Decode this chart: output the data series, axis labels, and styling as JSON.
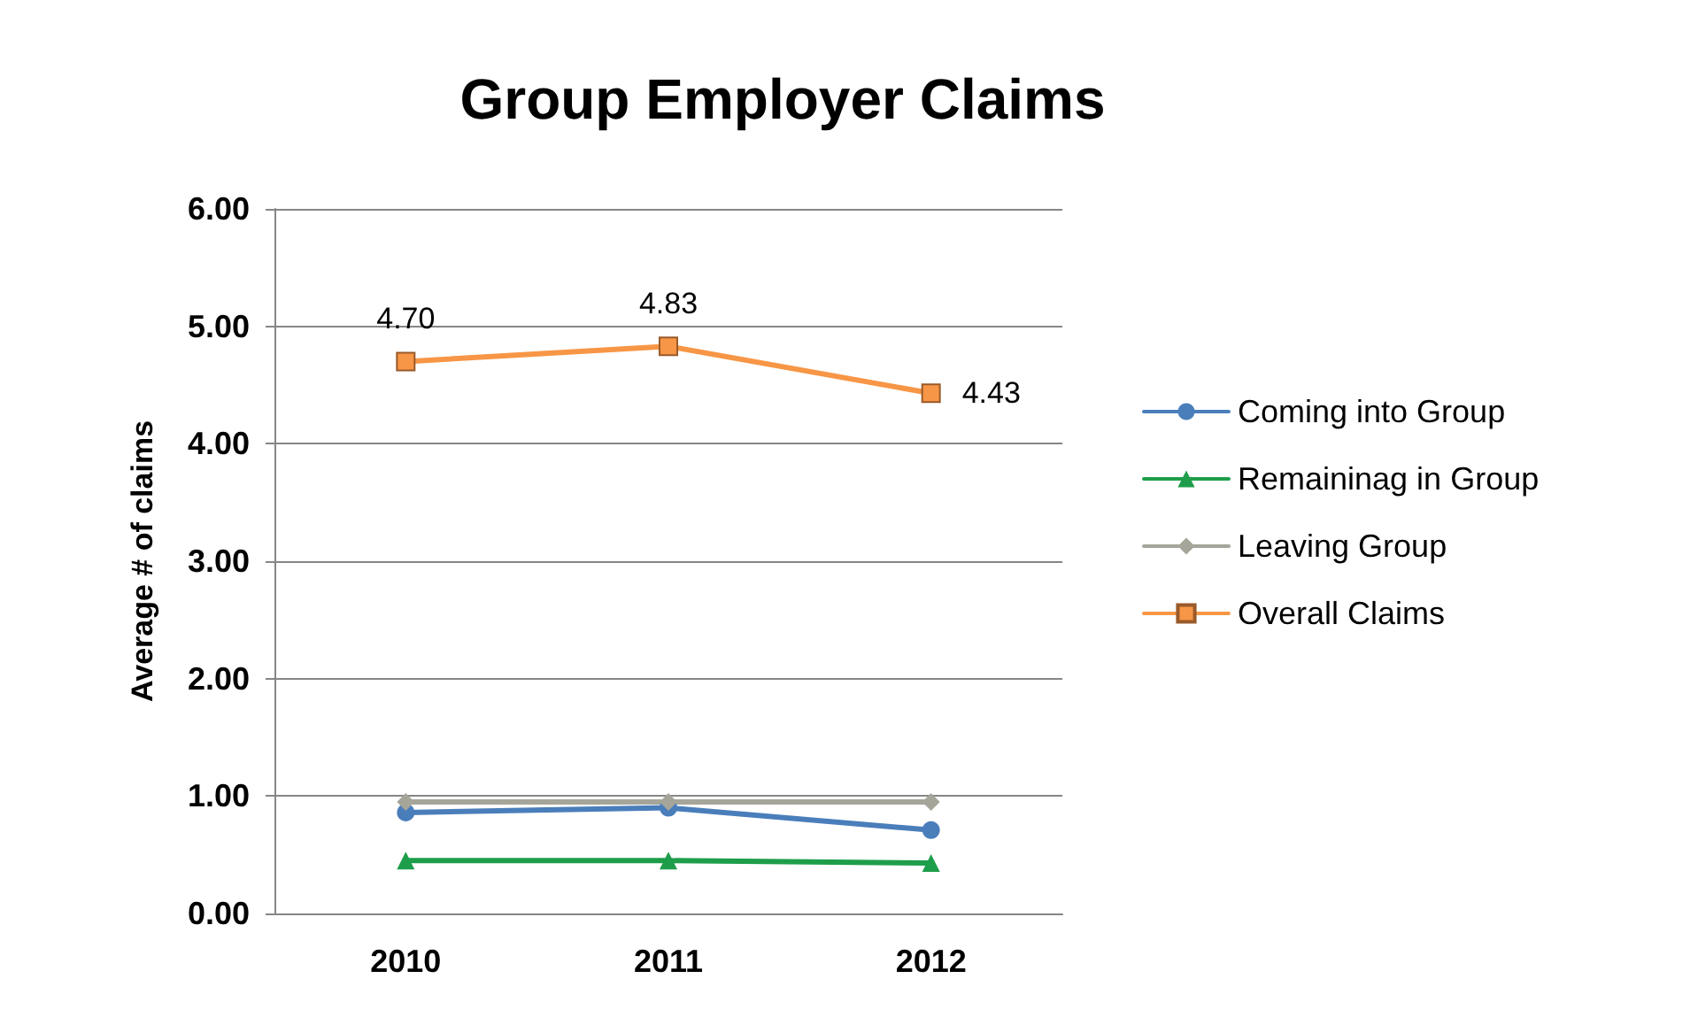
{
  "chart_data": {
    "type": "line",
    "title": "Group Employer Claims",
    "ylabel": "Average # of claims",
    "categories": [
      "2010",
      "2011",
      "2012"
    ],
    "series": [
      {
        "name": "Coming into Group",
        "color": "#4a7ebb",
        "marker": "circle",
        "values": [
          0.86,
          0.9,
          0.71
        ]
      },
      {
        "name": "Remaininag in Group",
        "color": "#1e9e4a",
        "marker": "triangle",
        "values": [
          0.45,
          0.45,
          0.43
        ]
      },
      {
        "name": "Leaving Group",
        "color": "#a5a59a",
        "marker": "diamond",
        "values": [
          0.95,
          0.95,
          0.95
        ]
      },
      {
        "name": "Overall Claims",
        "color": "#f79646",
        "marker": "square",
        "values": [
          4.7,
          4.83,
          4.43
        ],
        "value_labels": [
          "4.70",
          "4.83",
          "4.43"
        ]
      }
    ],
    "ylim": [
      0,
      6
    ],
    "yticks": [
      "0.00",
      "1.00",
      "2.00",
      "3.00",
      "4.00",
      "5.00",
      "6.00"
    ],
    "grid": "y",
    "legend": "right"
  }
}
